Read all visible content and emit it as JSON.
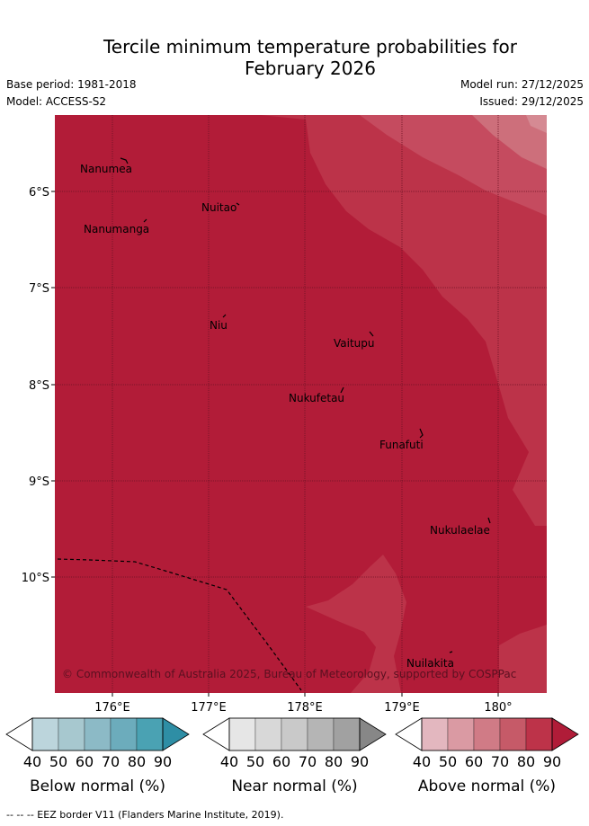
{
  "title_line1": "Tercile minimum temperature probabilities for",
  "title_line2": "February 2026",
  "base_period": "Base period: 1981-2018",
  "model": "Model: ACCESS-S2",
  "model_run": "Model run: 27/12/2025",
  "issued": "Issued: 29/12/2025",
  "lat_labels": [
    "6°S",
    "7°S",
    "8°S",
    "9°S",
    "10°S"
  ],
  "lon_labels": [
    "176°E",
    "177°E",
    "178°E",
    "179°E",
    "180°"
  ],
  "places": [
    {
      "name": "Nanumea"
    },
    {
      "name": "Nuitao"
    },
    {
      "name": "Nanumanga"
    },
    {
      "name": "Niu"
    },
    {
      "name": "Vaitupu"
    },
    {
      "name": "Nukufetau"
    },
    {
      "name": "Funafuti"
    },
    {
      "name": "Nukulaelae"
    },
    {
      "name": "Nuilakita"
    }
  ],
  "copyright": "© Commonwealth of Australia 2025, Bureau of Meteorology, supported by COSPPac",
  "legends": [
    {
      "label": "Below normal (%)",
      "ticks": [
        "40",
        "50",
        "60",
        "70",
        "80",
        "90"
      ],
      "colors": [
        "#ffffff",
        "#bcd5dc",
        "#a7c8cf",
        "#8cbac6",
        "#6cacbc",
        "#4aa2b3",
        "#2e8ea5"
      ]
    },
    {
      "label": "Near normal (%)",
      "ticks": [
        "40",
        "50",
        "60",
        "70",
        "80",
        "90"
      ],
      "colors": [
        "#ffffff",
        "#e6e6e6",
        "#d8d8d8",
        "#c9c9c9",
        "#b5b5b5",
        "#a1a1a1",
        "#878787"
      ]
    },
    {
      "label": "Above normal (%)",
      "ticks": [
        "40",
        "50",
        "60",
        "70",
        "80",
        "90"
      ],
      "colors": [
        "#ffffff",
        "#e3b7bf",
        "#da9aa3",
        "#d07b86",
        "#c65a68",
        "#bd3349",
        "#b01c38"
      ]
    }
  ],
  "eez_note": "-- -- -- EEZ border V11 (Flanders Marine Institute, 2019).",
  "colors": {
    "dominant": "#b21c38",
    "tier80": "#bc3349",
    "tier70": "#c54b5f",
    "tier60": "#cd6f7b"
  }
}
